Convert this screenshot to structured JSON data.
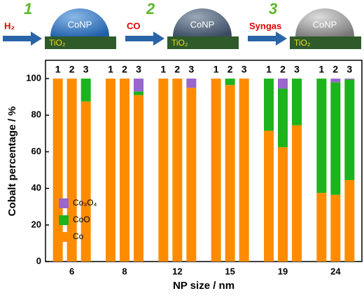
{
  "header": {
    "steps": [
      {
        "gas": "H₂",
        "number": "1",
        "particle": "CoNP",
        "support": "TiO₂"
      },
      {
        "gas": "CO",
        "number": "2",
        "particle": "CoNP",
        "support": "TiO₂"
      },
      {
        "gas": "Syngas",
        "number": "3",
        "particle": "CoNP",
        "support": "TiO₂"
      }
    ]
  },
  "chart_data": {
    "type": "stacked_bar",
    "x_label": "NP size / nm",
    "y_label": "Cobalt percentage / %",
    "categories": [
      "6",
      "8",
      "12",
      "15",
      "19",
      "24"
    ],
    "sub_labels": [
      "1",
      "2",
      "3"
    ],
    "series": [
      {
        "name": "Co",
        "color": "#ff8c00",
        "values": [
          [
            100,
            100,
            87.5
          ],
          [
            100,
            100,
            91
          ],
          [
            100,
            100,
            95
          ],
          [
            100,
            96.5,
            100
          ],
          [
            71.5,
            62.5,
            74.5
          ],
          [
            37.5,
            36.5,
            44.5
          ]
        ]
      },
      {
        "name": "CoO",
        "color": "#1db31d",
        "values": [
          [
            0,
            0,
            12.5
          ],
          [
            0,
            0,
            2
          ],
          [
            0,
            0,
            0
          ],
          [
            0,
            3.5,
            0
          ],
          [
            28.5,
            32,
            25.5
          ],
          [
            62.5,
            61.5,
            55
          ]
        ]
      },
      {
        "name": "Co₃O₄",
        "color": "#9966cc",
        "values": [
          [
            0,
            0,
            0
          ],
          [
            0,
            0,
            7
          ],
          [
            0,
            0,
            5
          ],
          [
            0,
            0,
            0
          ],
          [
            0,
            5.5,
            0
          ],
          [
            0,
            2,
            0.5
          ]
        ]
      }
    ],
    "ylim": [
      0,
      110
    ],
    "yticks": [
      0,
      20,
      40,
      60,
      80,
      100
    ]
  }
}
